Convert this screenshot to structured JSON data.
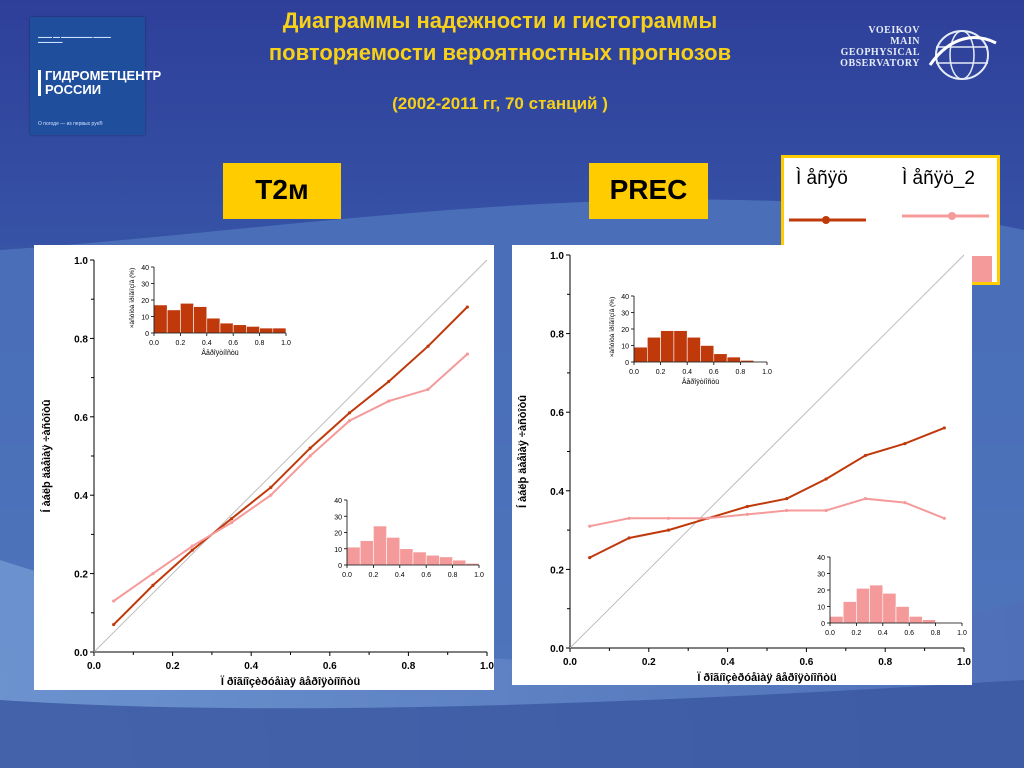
{
  "header": {
    "title_line1": "Диаграммы надежности и гистограммы",
    "title_line2": "повторяемости вероятностных прогнозов",
    "subtitle": "(2002-2011 гг, 70 станций )"
  },
  "logos": {
    "left": {
      "name_line1": "ГИДРОМЕТЦЕНТР",
      "name_line2": "РОССИИ",
      "motto": "О погоде — из первых рук®"
    },
    "right": [
      "VOEIKOV",
      "MAIN",
      "GEOPHYSICAL",
      "OBSERVATORY"
    ]
  },
  "tags": {
    "left": "T2м",
    "right": "PREC"
  },
  "legend": {
    "series1_label": "Ì åñÿö",
    "series2_label": "Ì åñÿö_2",
    "colors": {
      "series1": "#c0390b",
      "series2": "#f59a9a"
    }
  },
  "chart_data": [
    {
      "type": "line",
      "ylabel": "Í àáëþ äàåìàÿ ÷àñòîòû",
      "xlabel": "Ï ðîãíîçèðóåìàÿ âåðîÿòíîñòü",
      "xlim": [
        0,
        1
      ],
      "ylim": [
        0,
        1
      ],
      "x_ticks": [
        "0.0",
        "0.2",
        "0.4",
        "0.6",
        "0.8",
        "1.0"
      ],
      "y_ticks": [
        "0.0",
        "0.2",
        "0.4",
        "0.6",
        "0.8",
        "1.0"
      ],
      "diagonal": true,
      "series": [
        {
          "name": "Ì åñÿö",
          "color": "#c0390b",
          "x": [
            0.05,
            0.15,
            0.25,
            0.35,
            0.45,
            0.55,
            0.65,
            0.75,
            0.85,
            0.95
          ],
          "y": [
            0.07,
            0.17,
            0.26,
            0.34,
            0.42,
            0.52,
            0.61,
            0.69,
            0.78,
            0.88
          ]
        },
        {
          "name": "Ì åñÿö_2",
          "color": "#f59a9a",
          "x": [
            0.05,
            0.15,
            0.25,
            0.35,
            0.45,
            0.55,
            0.65,
            0.75,
            0.85,
            0.95
          ],
          "y": [
            0.13,
            0.2,
            0.27,
            0.33,
            0.4,
            0.5,
            0.59,
            0.64,
            0.67,
            0.76
          ]
        }
      ],
      "histograms": [
        {
          "type": "bar",
          "series": "Ì åñÿö",
          "color": "#c0390b",
          "ylabel": "×àñòîòà ïðîãíîçîâ (%)",
          "xlabel": "Âåðîÿòíîñòü",
          "ylim": [
            0,
            40
          ],
          "y_ticks": [
            "0",
            "10",
            "20",
            "30",
            "40"
          ],
          "x_ticks": [
            "0.0",
            "0.2",
            "0.4",
            "0.6",
            "0.8",
            "1.0"
          ],
          "values": [
            17,
            14,
            18,
            16,
            9,
            6,
            5,
            4,
            3,
            3
          ]
        },
        {
          "type": "bar",
          "series": "Ì åñÿö_2",
          "color": "#f59a9a",
          "ylim": [
            0,
            40
          ],
          "y_ticks": [
            "0",
            "10",
            "20",
            "30",
            "40"
          ],
          "x_ticks": [
            "0.0",
            "0.2",
            "0.4",
            "0.6",
            "0.8",
            "1.0"
          ],
          "values": [
            11,
            15,
            24,
            17,
            10,
            8,
            6,
            5,
            3,
            1
          ]
        }
      ]
    },
    {
      "type": "line",
      "ylabel": "Í àáëþ äàåìàÿ ÷àñòîòû",
      "xlabel": "Ï ðîãíîçèðóåìàÿ âåðîÿòíîñòü",
      "xlim": [
        0,
        1
      ],
      "ylim": [
        0,
        1
      ],
      "x_ticks": [
        "0.0",
        "0.2",
        "0.4",
        "0.6",
        "0.8",
        "1.0"
      ],
      "y_ticks": [
        "0.0",
        "0.2",
        "0.4",
        "0.6",
        "0.8",
        "1.0"
      ],
      "diagonal": true,
      "series": [
        {
          "name": "Ì åñÿö",
          "color": "#c0390b",
          "x": [
            0.05,
            0.15,
            0.25,
            0.35,
            0.45,
            0.55,
            0.65,
            0.75,
            0.85,
            0.95
          ],
          "y": [
            0.23,
            0.28,
            0.3,
            0.33,
            0.36,
            0.38,
            0.43,
            0.49,
            0.52,
            0.56
          ]
        },
        {
          "name": "Ì åñÿö_2",
          "color": "#f59a9a",
          "x": [
            0.05,
            0.15,
            0.25,
            0.35,
            0.45,
            0.55,
            0.65,
            0.75,
            0.85,
            0.95
          ],
          "y": [
            0.31,
            0.33,
            0.33,
            0.33,
            0.34,
            0.35,
            0.35,
            0.38,
            0.37,
            0.33
          ]
        }
      ],
      "histograms": [
        {
          "type": "bar",
          "series": "Ì åñÿö",
          "color": "#c0390b",
          "ylabel": "×àñòîòà ïðîãíîçîâ (%)",
          "xlabel": "Âåðîÿòíîñòü",
          "ylim": [
            0,
            40
          ],
          "y_ticks": [
            "0",
            "10",
            "20",
            "30",
            "40"
          ],
          "x_ticks": [
            "0.0",
            "0.2",
            "0.4",
            "0.6",
            "0.8",
            "1.0"
          ],
          "values": [
            9,
            15,
            19,
            19,
            15,
            10,
            5,
            3,
            1,
            0
          ]
        },
        {
          "type": "bar",
          "series": "Ì åñÿö_2",
          "color": "#f59a9a",
          "ylim": [
            0,
            40
          ],
          "y_ticks": [
            "0",
            "10",
            "20",
            "30",
            "40"
          ],
          "x_ticks": [
            "0.0",
            "0.2",
            "0.4",
            "0.6",
            "0.8",
            "1.0"
          ],
          "values": [
            4,
            13,
            21,
            23,
            18,
            10,
            4,
            2,
            0,
            0
          ]
        }
      ]
    }
  ]
}
